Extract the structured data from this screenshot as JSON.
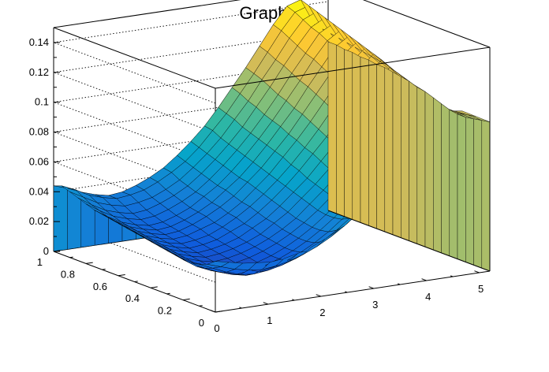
{
  "chart_data": {
    "type": "surface",
    "title": "Graph2D",
    "xlabel": "",
    "ylabel": "",
    "zlabel": "",
    "xlim": [
      0,
      5.2
    ],
    "ylim": [
      0,
      1.0
    ],
    "zlim": [
      0,
      0.15
    ],
    "xticks": [
      "0",
      "1",
      "2",
      "3",
      "4",
      "5"
    ],
    "yticks": [
      "0",
      "0.2",
      "0.4",
      "0.6",
      "0.8",
      "1"
    ],
    "zticks": [
      "0",
      "0.02",
      "0.04",
      "0.06",
      "0.08",
      "0.1",
      "0.12",
      "0.14"
    ],
    "grid": true,
    "colormap": "parula",
    "colors": [
      "#352a87",
      "#0f5cdd",
      "#1481d6",
      "#06a4ca",
      "#2eb7a4",
      "#87bf77",
      "#d1bb59",
      "#fec832",
      "#f9fb0e"
    ],
    "x": [
      0,
      0.26,
      0.52,
      0.78,
      1.04,
      1.3,
      1.56,
      1.82,
      2.08,
      2.34,
      2.6,
      2.86,
      3.12,
      3.38,
      3.64,
      3.9,
      4.16,
      4.42,
      4.68,
      4.94,
      5.2
    ],
    "y": [
      0,
      0.05,
      0.1,
      0.15,
      0.2,
      0.25,
      0.3,
      0.35,
      0.4,
      0.45,
      0.5,
      0.55,
      0.6,
      0.65,
      0.7,
      0.75,
      0.8,
      0.85,
      0.9,
      0.95,
      1.0
    ],
    "z_rows": [
      [
        0.034,
        0.032,
        0.03,
        0.029,
        0.028,
        0.029,
        0.031,
        0.034,
        0.038,
        0.043,
        0.049,
        0.055,
        0.062,
        0.07,
        0.078,
        0.087,
        0.096,
        0.106,
        0.11,
        0.105,
        0.1
      ],
      [
        0.03,
        0.027,
        0.024,
        0.022,
        0.021,
        0.022,
        0.024,
        0.027,
        0.031,
        0.036,
        0.042,
        0.049,
        0.056,
        0.064,
        0.073,
        0.082,
        0.092,
        0.102,
        0.108,
        0.104,
        0.099
      ],
      [
        0.028,
        0.024,
        0.02,
        0.017,
        0.016,
        0.017,
        0.019,
        0.022,
        0.026,
        0.031,
        0.037,
        0.044,
        0.052,
        0.06,
        0.069,
        0.078,
        0.088,
        0.099,
        0.107,
        0.103,
        0.098
      ],
      [
        0.027,
        0.022,
        0.018,
        0.015,
        0.013,
        0.014,
        0.016,
        0.019,
        0.023,
        0.028,
        0.034,
        0.041,
        0.049,
        0.057,
        0.066,
        0.076,
        0.086,
        0.097,
        0.107,
        0.103,
        0.097
      ],
      [
        0.027,
        0.021,
        0.017,
        0.014,
        0.012,
        0.013,
        0.015,
        0.018,
        0.022,
        0.027,
        0.033,
        0.04,
        0.048,
        0.056,
        0.065,
        0.075,
        0.086,
        0.097,
        0.107,
        0.103,
        0.097
      ],
      [
        0.028,
        0.022,
        0.017,
        0.014,
        0.012,
        0.013,
        0.015,
        0.018,
        0.022,
        0.027,
        0.033,
        0.04,
        0.048,
        0.057,
        0.066,
        0.076,
        0.087,
        0.099,
        0.109,
        0.105,
        0.098
      ],
      [
        0.029,
        0.023,
        0.018,
        0.015,
        0.013,
        0.014,
        0.016,
        0.019,
        0.023,
        0.028,
        0.034,
        0.041,
        0.049,
        0.058,
        0.068,
        0.078,
        0.089,
        0.101,
        0.112,
        0.107,
        0.1
      ],
      [
        0.03,
        0.024,
        0.019,
        0.016,
        0.014,
        0.015,
        0.017,
        0.02,
        0.024,
        0.029,
        0.035,
        0.043,
        0.051,
        0.06,
        0.07,
        0.081,
        0.092,
        0.104,
        0.115,
        0.109,
        0.102
      ],
      [
        0.031,
        0.025,
        0.02,
        0.017,
        0.015,
        0.016,
        0.018,
        0.021,
        0.025,
        0.031,
        0.037,
        0.045,
        0.053,
        0.062,
        0.072,
        0.083,
        0.095,
        0.107,
        0.118,
        0.111,
        0.104
      ],
      [
        0.032,
        0.026,
        0.021,
        0.018,
        0.016,
        0.017,
        0.019,
        0.022,
        0.027,
        0.032,
        0.039,
        0.047,
        0.055,
        0.065,
        0.075,
        0.086,
        0.098,
        0.11,
        0.121,
        0.113,
        0.105
      ],
      [
        0.033,
        0.027,
        0.022,
        0.019,
        0.017,
        0.018,
        0.02,
        0.024,
        0.028,
        0.034,
        0.041,
        0.049,
        0.058,
        0.068,
        0.078,
        0.09,
        0.102,
        0.114,
        0.124,
        0.115,
        0.107
      ],
      [
        0.034,
        0.028,
        0.023,
        0.02,
        0.018,
        0.019,
        0.021,
        0.025,
        0.03,
        0.036,
        0.043,
        0.051,
        0.06,
        0.07,
        0.081,
        0.093,
        0.105,
        0.117,
        0.126,
        0.117,
        0.108
      ],
      [
        0.035,
        0.029,
        0.024,
        0.021,
        0.019,
        0.02,
        0.023,
        0.026,
        0.031,
        0.037,
        0.045,
        0.053,
        0.063,
        0.073,
        0.084,
        0.096,
        0.108,
        0.12,
        0.128,
        0.118,
        0.109
      ],
      [
        0.036,
        0.03,
        0.025,
        0.022,
        0.02,
        0.021,
        0.024,
        0.028,
        0.033,
        0.039,
        0.047,
        0.055,
        0.065,
        0.075,
        0.087,
        0.099,
        0.111,
        0.123,
        0.13,
        0.119,
        0.11
      ],
      [
        0.037,
        0.031,
        0.026,
        0.023,
        0.021,
        0.022,
        0.025,
        0.029,
        0.034,
        0.041,
        0.048,
        0.057,
        0.067,
        0.078,
        0.089,
        0.102,
        0.114,
        0.126,
        0.132,
        0.12,
        0.11
      ],
      [
        0.038,
        0.032,
        0.027,
        0.024,
        0.022,
        0.023,
        0.026,
        0.03,
        0.036,
        0.042,
        0.05,
        0.059,
        0.069,
        0.08,
        0.092,
        0.104,
        0.117,
        0.128,
        0.134,
        0.121,
        0.111
      ],
      [
        0.04,
        0.034,
        0.029,
        0.026,
        0.024,
        0.025,
        0.028,
        0.032,
        0.037,
        0.044,
        0.052,
        0.061,
        0.071,
        0.082,
        0.094,
        0.107,
        0.119,
        0.131,
        0.136,
        0.122,
        0.111
      ],
      [
        0.042,
        0.036,
        0.031,
        0.028,
        0.026,
        0.027,
        0.03,
        0.034,
        0.039,
        0.046,
        0.054,
        0.063,
        0.073,
        0.085,
        0.097,
        0.11,
        0.122,
        0.133,
        0.138,
        0.123,
        0.112
      ],
      [
        0.044,
        0.039,
        0.034,
        0.031,
        0.029,
        0.03,
        0.032,
        0.036,
        0.041,
        0.048,
        0.056,
        0.065,
        0.076,
        0.087,
        0.1,
        0.112,
        0.125,
        0.136,
        0.14,
        0.124,
        0.112
      ],
      [
        0.046,
        0.042,
        0.037,
        0.034,
        0.032,
        0.033,
        0.035,
        0.039,
        0.044,
        0.05,
        0.058,
        0.068,
        0.078,
        0.09,
        0.102,
        0.115,
        0.128,
        0.139,
        0.142,
        0.125,
        0.113
      ],
      [
        0.044,
        0.041,
        0.037,
        0.034,
        0.032,
        0.033,
        0.036,
        0.04,
        0.045,
        0.052,
        0.06,
        0.069,
        0.08,
        0.092,
        0.104,
        0.117,
        0.13,
        0.141,
        0.144,
        0.126,
        0.113
      ]
    ]
  }
}
